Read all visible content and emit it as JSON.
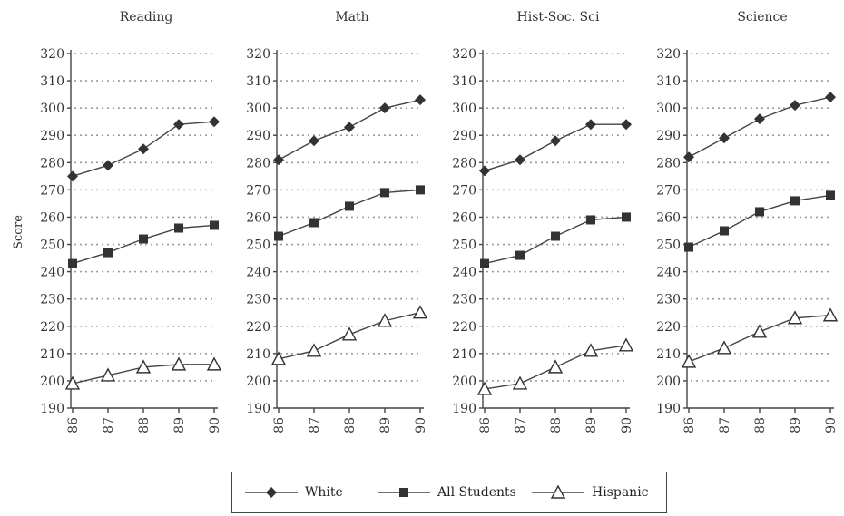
{
  "chart_data": {
    "type": "line",
    "ylabel": "Score",
    "ylim": [
      190,
      320
    ],
    "yticks": [
      190,
      200,
      210,
      220,
      230,
      240,
      250,
      260,
      270,
      280,
      290,
      300,
      310,
      320
    ],
    "categories": [
      "86",
      "87",
      "88",
      "89",
      "90"
    ],
    "grid": true,
    "legend_position": "bottom",
    "legend": [
      {
        "name": "White",
        "marker": "diamond"
      },
      {
        "name": "All Students",
        "marker": "square"
      },
      {
        "name": "Hispanic",
        "marker": "triangle-open"
      }
    ],
    "panels": [
      {
        "title": "Reading",
        "series": [
          {
            "name": "White",
            "values": [
              275,
              279,
              285,
              294,
              295
            ]
          },
          {
            "name": "All Students",
            "values": [
              243,
              247,
              252,
              256,
              257
            ]
          },
          {
            "name": "Hispanic",
            "values": [
              199,
              202,
              205,
              206,
              206
            ]
          }
        ]
      },
      {
        "title": "Math",
        "series": [
          {
            "name": "White",
            "values": [
              281,
              288,
              293,
              300,
              303
            ]
          },
          {
            "name": "All Students",
            "values": [
              253,
              258,
              264,
              269,
              270
            ]
          },
          {
            "name": "Hispanic",
            "values": [
              208,
              211,
              217,
              222,
              225
            ]
          }
        ]
      },
      {
        "title": "Hist-Soc. Sci",
        "series": [
          {
            "name": "White",
            "values": [
              277,
              281,
              288,
              294,
              294
            ]
          },
          {
            "name": "All Students",
            "values": [
              243,
              246,
              253,
              259,
              260
            ]
          },
          {
            "name": "Hispanic",
            "values": [
              197,
              199,
              205,
              211,
              213
            ]
          }
        ]
      },
      {
        "title": "Science",
        "series": [
          {
            "name": "White",
            "values": [
              282,
              289,
              296,
              301,
              304
            ]
          },
          {
            "name": "All Students",
            "values": [
              249,
              255,
              262,
              266,
              268
            ]
          },
          {
            "name": "Hispanic",
            "values": [
              207,
              212,
              218,
              223,
              224
            ]
          }
        ]
      }
    ]
  }
}
